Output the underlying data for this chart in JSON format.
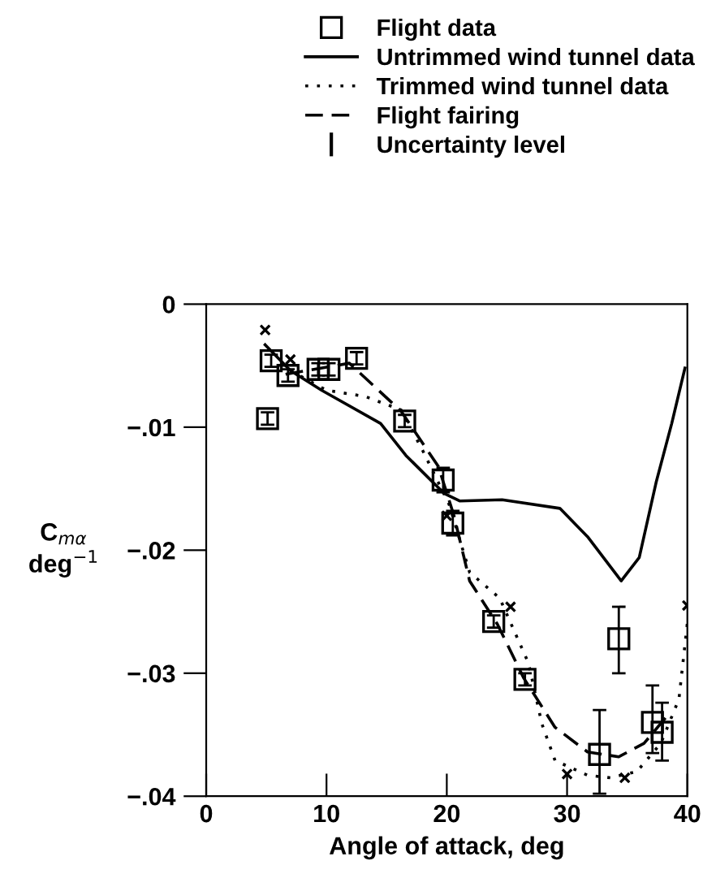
{
  "chart_data": {
    "type": "line",
    "xlabel": "Angle of attack, deg",
    "ylabel": "C$_{mα}$\ndeg$^{−1}$",
    "xlim": [
      0,
      40
    ],
    "ylim": [
      -0.04,
      0
    ],
    "xticks": [
      0,
      10,
      20,
      30,
      40
    ],
    "yticks": [
      {
        "value": -0.04,
        "label": "−.04"
      },
      {
        "value": -0.03,
        "label": "−.03"
      },
      {
        "value": -0.02,
        "label": "−.02"
      },
      {
        "value": -0.01,
        "label": "−.01"
      },
      0
    ],
    "grid": false,
    "legend": "top",
    "annotations": [
      "Uncertainty level"
    ],
    "series": [
      {
        "name": "Flight data",
        "type": "scatter",
        "marker": "square",
        "color": "#000000",
        "x": [
          5.1,
          5.4,
          6.8,
          9.3,
          10.2,
          12.5,
          16.5,
          19.7,
          20.5,
          23.9,
          26.5,
          32.7,
          34.3,
          37.1,
          37.9
        ],
        "values": [
          -0.0093,
          -0.0046,
          -0.0058,
          -0.0053,
          -0.0053,
          -0.0044,
          -0.0095,
          -0.0143,
          -0.0178,
          -0.0258,
          -0.0305,
          -0.0366,
          -0.0272,
          -0.034,
          -0.0348
        ],
        "errors": [
          0.0005,
          0.0005,
          0.0005,
          0.0005,
          0.0005,
          0.0005,
          0.0005,
          0.001,
          0.001,
          0.0005,
          0.0005,
          [
            -0.0398,
            -0.033
          ],
          [
            -0.03,
            -0.0246
          ],
          [
            -0.0365,
            -0.031
          ],
          [
            -0.0371,
            -0.0324
          ]
        ]
      },
      {
        "name": "Untrimmed wind tunnel data",
        "line_style": "solid",
        "marker": "none",
        "color": "#000000",
        "x": [
          4.9,
          7.0,
          9.6,
          14.5,
          16.6,
          19.8,
          21.1,
          24.6,
          29.4,
          31.7,
          34.5,
          36.0,
          37.4,
          38.7,
          39.8
        ],
        "values": [
          -0.0033,
          -0.0054,
          -0.007,
          -0.0097,
          -0.0123,
          -0.0154,
          -0.016,
          -0.0159,
          -0.0166,
          -0.0189,
          -0.0225,
          -0.0206,
          -0.0145,
          -0.0097,
          -0.0052
        ]
      },
      {
        "name": "Trimmed wind tunnel data",
        "line_style": "dotted",
        "marker": "none",
        "color": "#000000",
        "x": [
          7.0,
          10.0,
          13.2,
          16.2,
          18.0,
          20.2,
          21.9,
          24.4,
          26.8,
          27.9,
          29.0,
          31.7,
          33.6,
          35.8,
          37.8,
          39.3,
          40.0
        ],
        "values": [
          -0.0054,
          -0.007,
          -0.0075,
          -0.0086,
          -0.0119,
          -0.0163,
          -0.0218,
          -0.0239,
          -0.0292,
          -0.0341,
          -0.0371,
          -0.0383,
          -0.0385,
          -0.038,
          -0.0357,
          -0.0321,
          -0.0259
        ]
      },
      {
        "name": "Flight fairing",
        "line_style": "dashed",
        "marker": "none",
        "color": "#000000",
        "x": [
          6.6,
          11.9,
          16.2,
          19.3,
          20.6,
          21.9,
          24.2,
          26.4,
          29.0,
          31.7,
          34.3,
          36.4,
          38.3
        ],
        "values": [
          -0.0057,
          -0.0048,
          -0.0087,
          -0.0132,
          -0.0172,
          -0.0225,
          -0.026,
          -0.0304,
          -0.0344,
          -0.0364,
          -0.0368,
          -0.0357,
          -0.0335
        ]
      },
      {
        "type": "scatter",
        "marker": "cross",
        "color": "#000000",
        "x": [
          4.9,
          7.0,
          20.0,
          25.3,
          30.0,
          34.8,
          40.0
        ],
        "values": [
          -0.0021,
          -0.0045,
          -0.0172,
          -0.0246,
          -0.0382,
          -0.0385,
          -0.0245
        ]
      }
    ]
  }
}
